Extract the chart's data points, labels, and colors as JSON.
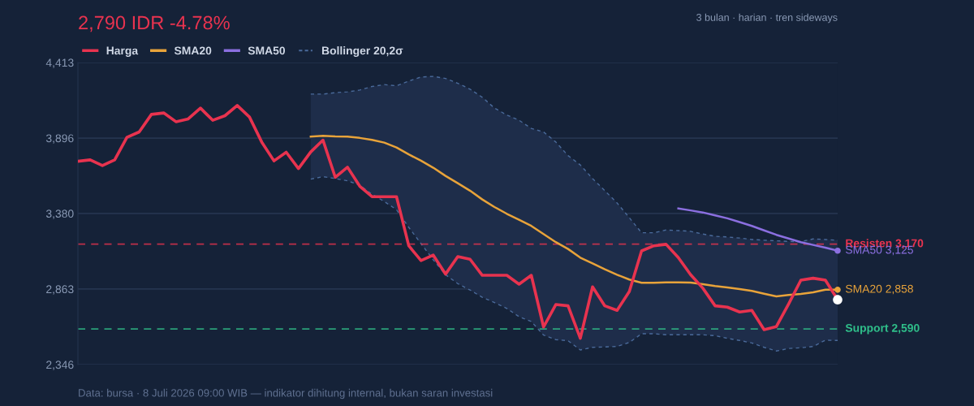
{
  "chart_data": {
    "type": "line",
    "title": "2,790 IDR -4.78%",
    "subtitle": "3 bulan · harian · tren sideways",
    "categories": [
      null,
      null,
      null,
      null,
      null,
      null,
      null,
      null,
      null,
      null,
      null,
      null,
      null,
      null,
      null,
      null,
      null,
      null,
      null,
      null,
      null,
      null,
      null,
      null,
      null,
      null,
      null,
      null,
      null,
      null,
      null,
      null,
      null,
      null,
      null,
      null,
      null,
      null,
      null,
      null,
      null,
      null,
      null,
      null,
      null,
      null,
      null,
      null,
      null,
      null,
      null,
      null,
      null,
      null,
      null,
      null,
      null,
      null,
      null,
      null,
      null,
      null,
      null
    ],
    "series": [
      {
        "name": "Harga",
        "color": "#e8334f",
        "values": [
          3737,
          3747,
          3708,
          3747,
          3901,
          3938,
          4058,
          4068,
          4008,
          4027,
          4101,
          4018,
          4049,
          4119,
          4040,
          3869,
          3740,
          3799,
          3687,
          3801,
          3882,
          3628,
          3697,
          3567,
          3495,
          3495,
          3495,
          3159,
          3058,
          3095,
          2965,
          3085,
          3067,
          2957,
          2957,
          2957,
          2896,
          2957,
          2603,
          2757,
          2748,
          2526,
          2878,
          2748,
          2717,
          2846,
          3124,
          3159,
          3169,
          3078,
          2961,
          2869,
          2748,
          2739,
          2706,
          2717,
          2585,
          2606,
          2761,
          2924,
          2937,
          2924,
          2790
        ]
      },
      {
        "name": "SMA20",
        "color": "#e8a33a",
        "values": [
          null,
          null,
          null,
          null,
          null,
          null,
          null,
          null,
          null,
          null,
          null,
          null,
          null,
          null,
          null,
          null,
          null,
          null,
          null,
          3906,
          3912,
          3908,
          3906,
          3897,
          3884,
          3865,
          3832,
          3784,
          3741,
          3693,
          3637,
          3587,
          3536,
          3476,
          3424,
          3378,
          3337,
          3295,
          3239,
          3184,
          3137,
          3078,
          3039,
          2998,
          2961,
          2928,
          2906,
          2906,
          2909,
          2909,
          2907,
          2896,
          2884,
          2874,
          2863,
          2850,
          2831,
          2813,
          2822,
          2830,
          2841,
          2859,
          2858
        ]
      },
      {
        "name": "SMA50",
        "color": "#8b6fe0",
        "values": [
          null,
          null,
          null,
          null,
          null,
          null,
          null,
          null,
          null,
          null,
          null,
          null,
          null,
          null,
          null,
          null,
          null,
          null,
          null,
          null,
          null,
          null,
          null,
          null,
          null,
          null,
          null,
          null,
          null,
          null,
          null,
          null,
          null,
          null,
          null,
          null,
          null,
          null,
          null,
          null,
          null,
          null,
          null,
          null,
          null,
          null,
          null,
          null,
          null,
          3415,
          3401,
          3387,
          3367,
          3347,
          3321,
          3295,
          3264,
          3234,
          3209,
          3184,
          3165,
          3146,
          3125
        ]
      },
      {
        "name": "Bollinger 20,2σ",
        "color": "#4a6a9a",
        "line_style": "dashed",
        "lower": [
          null,
          null,
          null,
          null,
          null,
          null,
          null,
          null,
          null,
          null,
          null,
          null,
          null,
          null,
          null,
          null,
          null,
          null,
          null,
          3615,
          3632,
          3619,
          3604,
          3573,
          3512,
          3462,
          3406,
          3285,
          3174,
          3063,
          2961,
          2900,
          2856,
          2807,
          2770,
          2730,
          2674,
          2641,
          2548,
          2517,
          2509,
          2446,
          2464,
          2467,
          2470,
          2498,
          2557,
          2557,
          2550,
          2550,
          2550,
          2550,
          2544,
          2526,
          2511,
          2494,
          2464,
          2439,
          2456,
          2461,
          2470,
          2513,
          2511
        ],
        "upper": [
          null,
          null,
          null,
          null,
          null,
          null,
          null,
          null,
          null,
          null,
          null,
          null,
          null,
          null,
          null,
          null,
          null,
          null,
          null,
          4197,
          4197,
          4207,
          4212,
          4225,
          4249,
          4262,
          4254,
          4286,
          4314,
          4318,
          4304,
          4271,
          4231,
          4175,
          4101,
          4054,
          4018,
          3962,
          3938,
          3869,
          3776,
          3712,
          3619,
          3536,
          3452,
          3351,
          3248,
          3248,
          3267,
          3263,
          3258,
          3239,
          3224,
          3219,
          3212,
          3202,
          3197,
          3193,
          3189,
          3187,
          3206,
          3202,
          3197
        ],
        "values": [
          null,
          null,
          null,
          null,
          null,
          null,
          null,
          null,
          null,
          null,
          null,
          null,
          null,
          null,
          null,
          null,
          null,
          null,
          null,
          4197,
          4197,
          4207,
          4212,
          4225,
          4249,
          4262,
          4254,
          4286,
          4314,
          4318,
          4304,
          4271,
          4231,
          4175,
          4101,
          4054,
          4018,
          3962,
          3938,
          3869,
          3776,
          3712,
          3619,
          3536,
          3452,
          3351,
          3248,
          3248,
          3267,
          3263,
          3258,
          3239,
          3224,
          3219,
          3212,
          3202,
          3197,
          3193,
          3189,
          3187,
          3206,
          3202,
          3197
        ]
      },
      {
        "color": "#4a6a9a",
        "line_style": "dashed",
        "values": [
          null,
          null,
          null,
          null,
          null,
          null,
          null,
          null,
          null,
          null,
          null,
          null,
          null,
          null,
          null,
          null,
          null,
          null,
          null,
          3615,
          3632,
          3619,
          3604,
          3573,
          3512,
          3462,
          3406,
          3285,
          3174,
          3063,
          2961,
          2900,
          2856,
          2807,
          2770,
          2730,
          2674,
          2641,
          2548,
          2517,
          2509,
          2446,
          2464,
          2467,
          2470,
          2498,
          2557,
          2557,
          2550,
          2550,
          2550,
          2550,
          2544,
          2526,
          2511,
          2494,
          2464,
          2439,
          2456,
          2461,
          2470,
          2513,
          2511
        ]
      },
      {
        "type": "scatter",
        "color": "#8b6fe0",
        "values": [
          null,
          null,
          null,
          null,
          null,
          null,
          null,
          null,
          null,
          null,
          null,
          null,
          null,
          null,
          null,
          null,
          null,
          null,
          null,
          null,
          null,
          null,
          null,
          null,
          null,
          null,
          null,
          null,
          null,
          null,
          null,
          null,
          null,
          null,
          null,
          null,
          null,
          null,
          null,
          null,
          null,
          null,
          null,
          null,
          null,
          null,
          null,
          null,
          null,
          null,
          null,
          null,
          null,
          null,
          null,
          null,
          null,
          null,
          null,
          null,
          null,
          null,
          3125
        ]
      },
      {
        "type": "scatter",
        "color": "#e8a33a",
        "values": [
          null,
          null,
          null,
          null,
          null,
          null,
          null,
          null,
          null,
          null,
          null,
          null,
          null,
          null,
          null,
          null,
          null,
          null,
          null,
          null,
          null,
          null,
          null,
          null,
          null,
          null,
          null,
          null,
          null,
          null,
          null,
          null,
          null,
          null,
          null,
          null,
          null,
          null,
          null,
          null,
          null,
          null,
          null,
          null,
          null,
          null,
          null,
          null,
          null,
          null,
          null,
          null,
          null,
          null,
          null,
          null,
          null,
          null,
          null,
          null,
          null,
          null,
          2858
        ]
      },
      {
        "type": "scatter",
        "color": "#ffffff",
        "values": [
          null,
          null,
          null,
          null,
          null,
          null,
          null,
          null,
          null,
          null,
          null,
          null,
          null,
          null,
          null,
          null,
          null,
          null,
          null,
          null,
          null,
          null,
          null,
          null,
          null,
          null,
          null,
          null,
          null,
          null,
          null,
          null,
          null,
          null,
          null,
          null,
          null,
          null,
          null,
          null,
          null,
          null,
          null,
          null,
          null,
          null,
          null,
          null,
          null,
          null,
          null,
          null,
          null,
          null,
          null,
          null,
          null,
          null,
          null,
          null,
          null,
          null,
          2790
        ]
      }
    ],
    "ylim": [
      2346,
      4413
    ],
    "yticks": [
      {
        "value": 2346,
        "label": "2,346"
      },
      {
        "value": 2863,
        "label": "2,863"
      },
      {
        "value": 3380,
        "label": "3,380"
      },
      {
        "value": 3896,
        "label": "3,896"
      },
      {
        "value": 4413,
        "label": "4,413"
      }
    ],
    "grid": "y",
    "legend": "top left",
    "tick_labels": "y",
    "ref_lines": [
      {
        "axis": "y",
        "value": 3170,
        "label": "Resisten 3,170",
        "color": "#e8334f",
        "line_style": "dashed"
      },
      {
        "axis": "y",
        "value": 2590,
        "label": "Support 2,590",
        "color": "#2fbf8a",
        "line_style": "dashed"
      }
    ],
    "annotations": [
      "SMA50 3,125",
      "SMA20 2,858",
      "Data: bursa · 8 Juli 2026 09:00 WIB — indikator dihitung internal, bukan saran investasi"
    ]
  }
}
